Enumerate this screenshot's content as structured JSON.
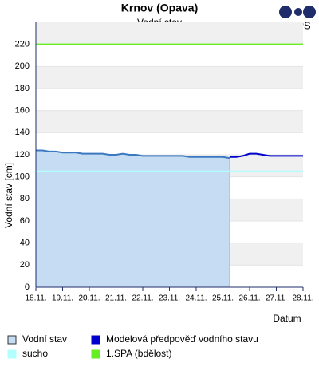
{
  "chart_data": {
    "type": "line",
    "title": "Krnov (Opava)",
    "subtitle": "Vodní stav",
    "logo": "HPPS",
    "y_label": "Vodní stav [cm]",
    "x_label": "Datum",
    "xlim": [
      0,
      10
    ],
    "xticks": [
      {
        "value": 0,
        "label": "18.11."
      },
      {
        "value": 1,
        "label": "19.11."
      },
      {
        "value": 2,
        "label": "20.11."
      },
      {
        "value": 3,
        "label": "21.11."
      },
      {
        "value": 4,
        "label": "22.11."
      },
      {
        "value": 5,
        "label": "23.11."
      },
      {
        "value": 6,
        "label": "24.11."
      },
      {
        "value": 7,
        "label": "25.11."
      },
      {
        "value": 8,
        "label": "26.11."
      },
      {
        "value": 9,
        "label": "27.11."
      },
      {
        "value": 10,
        "label": "28.11."
      }
    ],
    "ylim": [
      0,
      240
    ],
    "yticks": [
      0,
      20,
      40,
      60,
      80,
      100,
      120,
      140,
      160,
      180,
      200,
      220
    ],
    "grid": true,
    "series": [
      {
        "name": "Vodní stav",
        "color": "#3a78c0",
        "fill": "#c5dcf2",
        "x": [
          0,
          0.25,
          0.5,
          0.75,
          1,
          1.25,
          1.5,
          1.75,
          2,
          2.25,
          2.5,
          2.75,
          3,
          3.25,
          3.5,
          3.75,
          4,
          4.25,
          4.5,
          4.75,
          5,
          5.25,
          5.5,
          5.75,
          6,
          6.25,
          6.5,
          6.75,
          7,
          7.25
        ],
        "values": [
          124,
          124,
          123,
          123,
          122,
          122,
          122,
          121,
          121,
          121,
          121,
          120,
          120,
          121,
          120,
          120,
          119,
          119,
          119,
          119,
          119,
          119,
          119,
          118,
          118,
          118,
          118,
          118,
          118,
          117
        ]
      },
      {
        "name": "Modelová předpověď vodního stavu",
        "color": "#0000cc",
        "x": [
          7.25,
          7.5,
          7.75,
          8,
          8.25,
          8.5,
          8.75,
          9,
          9.25,
          9.5,
          9.75,
          10
        ],
        "values": [
          118,
          118,
          119,
          121,
          121,
          120,
          119,
          119,
          119,
          119,
          119,
          119
        ]
      }
    ],
    "thresholds": [
      {
        "name": "sucho",
        "color": "#b3ffff",
        "value": 105
      },
      {
        "name": "1.SPA (bdělost)",
        "color": "#66ee22",
        "value": 220
      }
    ]
  }
}
